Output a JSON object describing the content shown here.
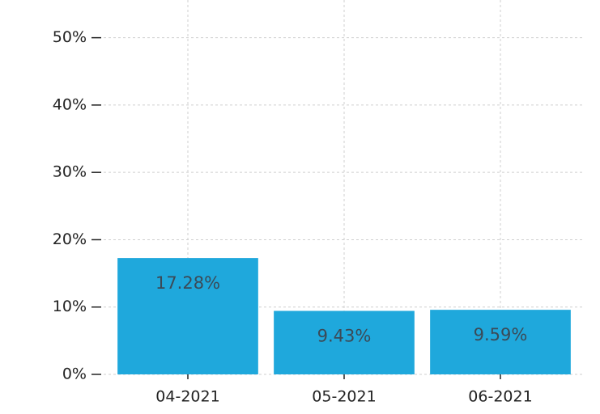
{
  "chart_data": {
    "type": "bar",
    "categories": [
      "04-2021",
      "05-2021",
      "06-2021"
    ],
    "values": [
      17.28,
      9.43,
      9.59
    ],
    "value_labels": [
      "17.28%",
      "9.43%",
      "9.59%"
    ],
    "color": "#1fa8dc",
    "ylim": [
      0,
      55.6
    ],
    "yticks": [
      {
        "value": 0,
        "label": "0%"
      },
      {
        "value": 10,
        "label": "10%"
      },
      {
        "value": 20,
        "label": "20%"
      },
      {
        "value": 30,
        "label": "30%"
      },
      {
        "value": 40,
        "label": "40%"
      },
      {
        "value": 50,
        "label": "50%"
      }
    ],
    "grid": true
  }
}
